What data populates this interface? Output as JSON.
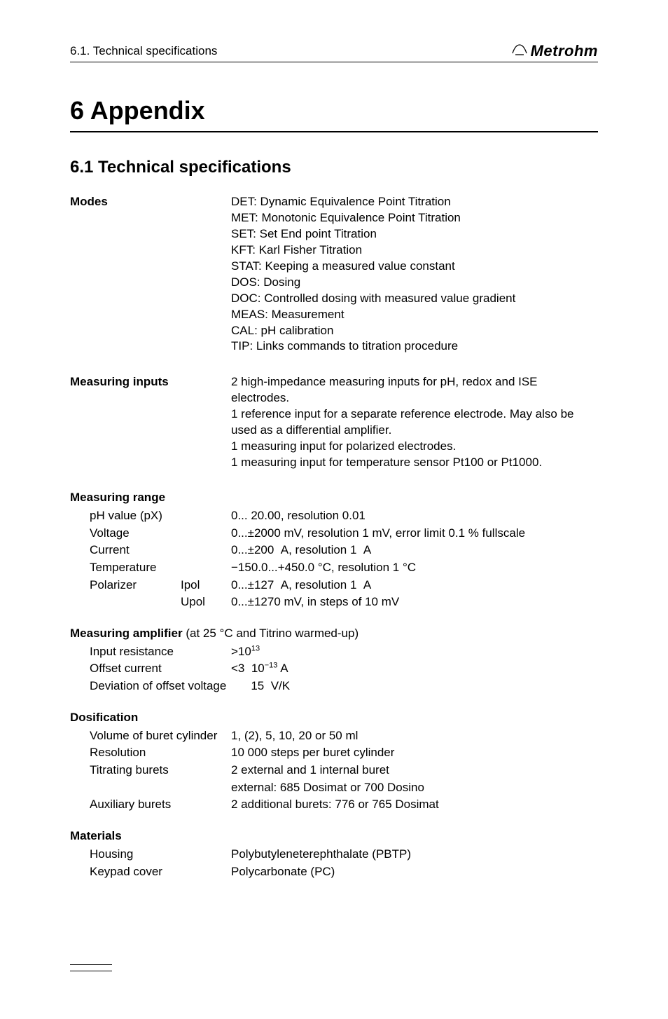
{
  "header": {
    "section_ref": "6.1. Technical specifications",
    "logo_text": "Metrohm"
  },
  "title": "6 Appendix",
  "subtitle": "6.1 Technical specifications",
  "modes": {
    "label": "Modes",
    "lines": [
      "DET: Dynamic Equivalence Point Titration",
      "MET: Monotonic Equivalence Point Titration",
      "SET: Set End point Titration",
      "KFT: Karl Fisher Titration",
      "STAT: Keeping a measured value constant",
      "DOS: Dosing",
      "DOC: Controlled dosing with measured value gradient",
      "MEAS: Measurement",
      "CAL: pH calibration",
      "TIP: Links commands to titration procedure"
    ]
  },
  "measuring_inputs": {
    "label": "Measuring inputs",
    "lines": [
      "2 high-impedance measuring inputs for pH, redox and ISE electrodes.",
      "1 reference input for a separate reference electrode. May also be used as a differential amplifier.",
      "1 measuring input for polarized electrodes.",
      "1 measuring input for temperature sensor Pt100 or Pt1000."
    ]
  },
  "measuring_range": {
    "label": "Measuring range",
    "rows": [
      {
        "k": "pH value (pX)",
        "k2": "",
        "v": "0... 20.00, resolution 0.01"
      },
      {
        "k": "Voltage",
        "k2": "",
        "v": "0...±2000 mV, resolution 1 mV, error limit 0.1 % fullscale"
      },
      {
        "k": "Current",
        "k2": "",
        "v": "0...±200  A, resolution 1  A"
      },
      {
        "k": "Temperature",
        "k2": "",
        "v": "−150.0...+450.0 °C, resolution 1 °C"
      },
      {
        "k": "Polarizer",
        "k2": "Ipol",
        "v": "0...±127  A, resolution 1  A"
      },
      {
        "k": "",
        "k2": "Upol",
        "v": "0...±1270 mV, in steps of 10 mV"
      }
    ]
  },
  "measuring_amplifier": {
    "label_bold": "Measuring amplifier",
    "label_rest": " (at 25 °C and Titrino warmed-up)",
    "rows": [
      {
        "k": "Input resistance",
        "v_html": ">10<span class='sup'>13</span>"
      },
      {
        "k": "Offset current",
        "v_html": "<3  10<span class='sup'>−13</span> A"
      },
      {
        "k": "Deviation of offset voltage",
        "v_html": "      15  V/K"
      }
    ]
  },
  "dosification": {
    "label": "Dosification",
    "rows": [
      {
        "k": "Volume of buret cylinder",
        "v": "1, (2), 5, 10, 20 or 50 ml"
      },
      {
        "k": "Resolution",
        "v": "10 000 steps per buret cylinder"
      },
      {
        "k": "Titrating burets",
        "v": "2 external and 1 internal buret"
      },
      {
        "k": "",
        "v": "external: 685 Dosimat or 700 Dosino"
      },
      {
        "k": "Auxiliary burets",
        "v": "2 additional burets: 776 or 765 Dosimat"
      }
    ]
  },
  "materials": {
    "label": "Materials",
    "rows": [
      {
        "k": "Housing",
        "v": "Polybutyleneterephthalate (PBTP)"
      },
      {
        "k": "Keypad cover",
        "v": "Polycarbonate (PC)"
      }
    ]
  },
  "colors": {
    "text": "#000000",
    "bg": "#ffffff",
    "rule": "#000000"
  }
}
